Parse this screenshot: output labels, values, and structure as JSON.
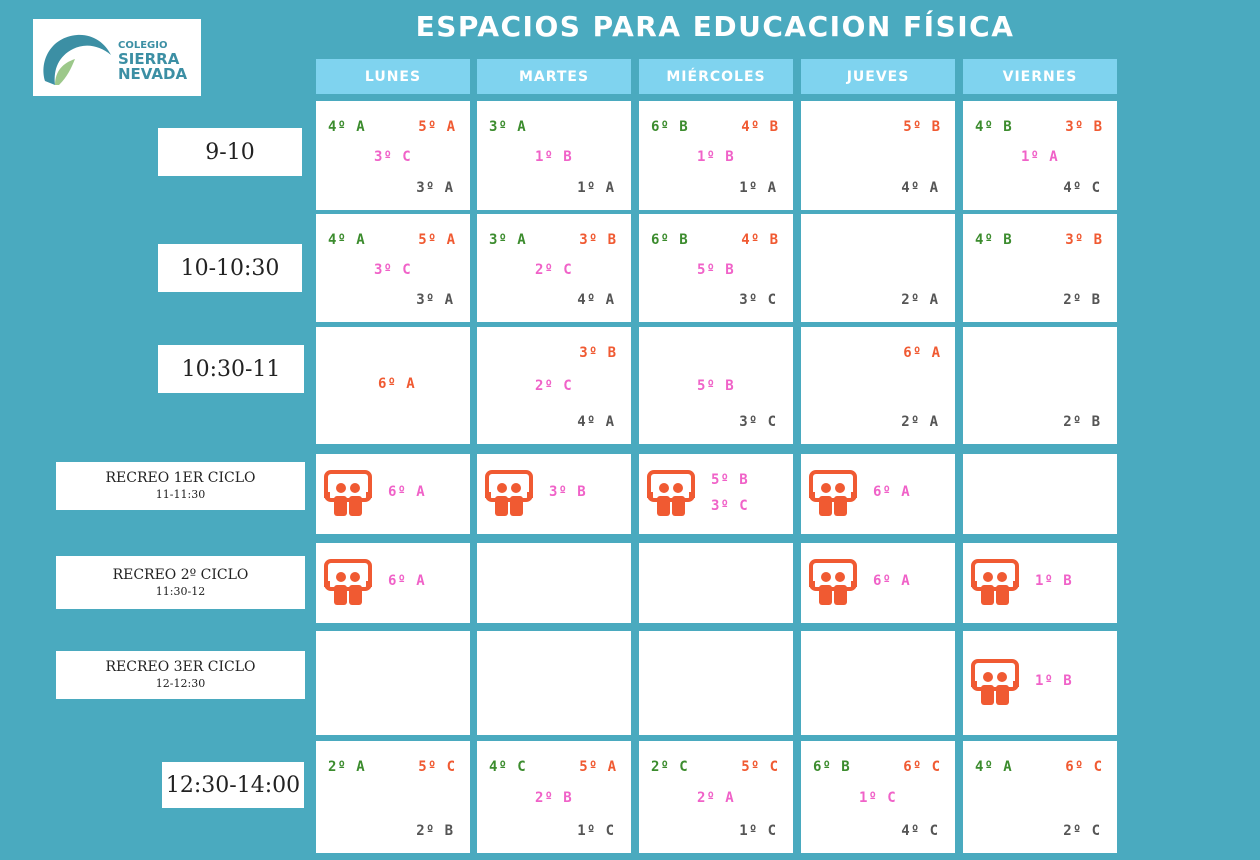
{
  "logo": {
    "line1": "COLEGIO",
    "line2": "SIERRA",
    "line3": "NEVADA"
  },
  "title": "ESPACIOS PARA EDUCACION FÍSICA",
  "days": [
    "LUNES",
    "MARTES",
    "MIÉRCOLES",
    "JUEVES",
    "VIERNES"
  ],
  "slots": [
    {
      "label": "9-10"
    },
    {
      "label": "10-10:30"
    },
    {
      "label": "10:30-11"
    },
    {
      "label": "RECREO 1ER CICLO",
      "sub": "11-11:30"
    },
    {
      "label": "RECREO 2º CICLO",
      "sub": "11:30-12"
    },
    {
      "label": "RECREO 3ER CICLO",
      "sub": "12-12:30"
    },
    {
      "label": "12:30-14:00"
    }
  ],
  "colors": {
    "background": "#4aaabf",
    "day_header": "#7fd3ef",
    "green": "#3c8c2e",
    "red": "#f05a32",
    "pink": "#f062c8",
    "gray": "#555555",
    "icon": "#f05a32"
  },
  "recreo_icon": "playground-kids-icon",
  "schedule": [
    [
      {
        "green": "4º A",
        "red": "5º A",
        "pink": "3º C",
        "gray": "3º A"
      },
      {
        "green": "3º A",
        "pink": "1º B",
        "gray": "1º A"
      },
      {
        "green": "6º B",
        "red": "4º B",
        "pink": "1º B",
        "gray": "1º A"
      },
      {
        "red": "5º B",
        "gray": "4º A"
      },
      {
        "green": "4º B",
        "red": "3º B",
        "pink": "1º A",
        "gray": "4º C"
      }
    ],
    [
      {
        "green": "4º A",
        "red": "5º A",
        "pink": "3º C",
        "gray": "3º A"
      },
      {
        "green": "3º A",
        "red": "3º B",
        "pink": "2º C",
        "gray": "4º A"
      },
      {
        "green": "6º B",
        "red": "4º B",
        "pink": "5º B",
        "gray": "3º C"
      },
      {
        "gray": "2º A"
      },
      {
        "green": "4º B",
        "red": "3º B",
        "gray": "2º B"
      }
    ],
    [
      {
        "red": "6º A"
      },
      {
        "red": "3º B",
        "pink": "2º C",
        "gray": "4º A"
      },
      {
        "pink": "5º B",
        "gray": "3º C"
      },
      {
        "red": "6º A",
        "gray": "2º A"
      },
      {
        "gray": "2º B"
      }
    ],
    [
      {
        "icon": true,
        "pink": "6º A"
      },
      {
        "icon": true,
        "pink": "3º B"
      },
      {
        "icon": true,
        "pink": "5º B",
        "pink2": "3º C"
      },
      {
        "icon": true,
        "pink": "6º A"
      },
      {}
    ],
    [
      {
        "icon": true,
        "pink": "6º A"
      },
      {},
      {},
      {
        "icon": true,
        "pink": "6º A"
      },
      {
        "icon": true,
        "pink": "1º B"
      }
    ],
    [
      {},
      {},
      {},
      {},
      {
        "icon": true,
        "pink": "1º B"
      }
    ],
    [
      {
        "green": "2º A",
        "red": "5º C",
        "gray": "2º B"
      },
      {
        "green": "4º C",
        "red": "5º A",
        "pink": "2º B",
        "gray": "1º C"
      },
      {
        "green": "2º C",
        "red": "5º C",
        "pink": "2º A",
        "gray": "1º C"
      },
      {
        "green": "6º B",
        "red": "6º C",
        "pink": "1º C",
        "gray": "4º C"
      },
      {
        "green": "4º A",
        "red": "6º C",
        "gray": "2º C"
      }
    ]
  ]
}
